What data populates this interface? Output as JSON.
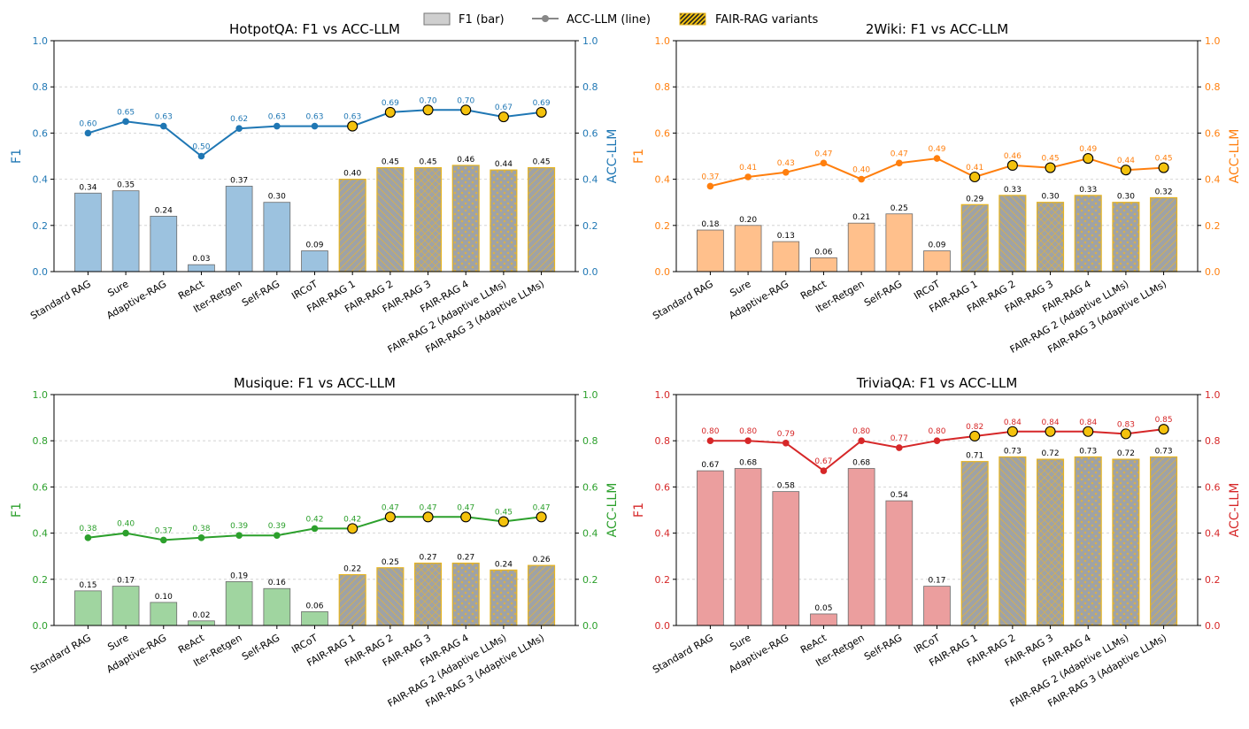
{
  "legend": {
    "items": [
      {
        "label": "F1 (bar)",
        "kind": "bar"
      },
      {
        "label": "ACC-LLM (line)",
        "kind": "line"
      },
      {
        "label": "FAIR-RAG variants",
        "kind": "hatch"
      }
    ]
  },
  "colors": {
    "fair_bar_fill": "#9ea2a7",
    "fair_bar_edge": "#e6b422",
    "fair_marker": "#f4c20d",
    "grid": "#cccccc"
  },
  "chart_data": [
    {
      "type": "bar+line",
      "title": "HotpotQA: F1 vs ACC-LLM",
      "ylabel_left": "F1",
      "ylabel_right": "ACC-LLM",
      "ylim": [
        0,
        1
      ],
      "yticks": [
        "0.0",
        "0.2",
        "0.4",
        "0.6",
        "0.8",
        "1.0"
      ],
      "color": "#1f77b4",
      "bar_color": "#9cc2df",
      "categories": [
        "Standard RAG",
        "Sure",
        "Adaptive-RAG",
        "ReAct",
        "Iter-Retgen",
        "Self-RAG",
        "IRCoT",
        "FAIR-RAG 1",
        "FAIR-RAG 2",
        "FAIR-RAG 3",
        "FAIR-RAG 4",
        "FAIR-RAG 2 (Adaptive LLMs)",
        "FAIR-RAG 3 (Adaptive LLMs)"
      ],
      "f1": [
        0.34,
        0.35,
        0.24,
        0.03,
        0.37,
        0.3,
        0.09,
        0.4,
        0.45,
        0.45,
        0.46,
        0.44,
        0.45
      ],
      "f1_labels": [
        "0.34",
        "0.35",
        "0.24",
        "0.03",
        "0.37",
        "0.30",
        "0.09",
        "0.40",
        "0.45",
        "0.45",
        "0.46",
        "0.44",
        "0.45"
      ],
      "acc_llm": [
        0.6,
        0.65,
        0.63,
        0.5,
        0.62,
        0.63,
        0.63,
        0.63,
        0.69,
        0.7,
        0.7,
        0.67,
        0.69
      ],
      "acc_labels": [
        "0.60",
        "0.65",
        "0.63",
        "0.50",
        "0.62",
        "0.63",
        "0.63",
        "0.63",
        "0.69",
        "0.70",
        "0.70",
        "0.67",
        "0.69"
      ],
      "fair_variant": [
        false,
        false,
        false,
        false,
        false,
        false,
        false,
        true,
        true,
        true,
        true,
        true,
        true
      ]
    },
    {
      "type": "bar+line",
      "title": "2Wiki: F1 vs ACC-LLM",
      "ylabel_left": "F1",
      "ylabel_right": "ACC-LLM",
      "ylim": [
        0,
        1
      ],
      "yticks": [
        "0.0",
        "0.2",
        "0.4",
        "0.6",
        "0.8",
        "1.0"
      ],
      "color": "#ff7f0e",
      "bar_color": "#ffc08c",
      "categories": [
        "Standard RAG",
        "Sure",
        "Adaptive-RAG",
        "ReAct",
        "Iter-Retgen",
        "Self-RAG",
        "IRCoT",
        "FAIR-RAG 1",
        "FAIR-RAG 2",
        "FAIR-RAG 3",
        "FAIR-RAG 4",
        "FAIR-RAG 2 (Adaptive LLMs)",
        "FAIR-RAG 3 (Adaptive LLMs)"
      ],
      "f1": [
        0.18,
        0.2,
        0.13,
        0.06,
        0.21,
        0.25,
        0.09,
        0.29,
        0.33,
        0.3,
        0.33,
        0.3,
        0.32
      ],
      "f1_labels": [
        "0.18",
        "0.20",
        "0.13",
        "0.06",
        "0.21",
        "0.25",
        "0.09",
        "0.29",
        "0.33",
        "0.30",
        "0.33",
        "0.30",
        "0.32"
      ],
      "acc_llm": [
        0.37,
        0.41,
        0.43,
        0.47,
        0.4,
        0.47,
        0.49,
        0.41,
        0.46,
        0.45,
        0.49,
        0.44,
        0.45
      ],
      "acc_labels": [
        "0.37",
        "0.41",
        "0.43",
        "0.47",
        "0.40",
        "0.47",
        "0.49",
        "0.41",
        "0.46",
        "0.45",
        "0.49",
        "0.44",
        "0.45"
      ],
      "fair_variant": [
        false,
        false,
        false,
        false,
        false,
        false,
        false,
        true,
        true,
        true,
        true,
        true,
        true
      ]
    },
    {
      "type": "bar+line",
      "title": "Musique: F1 vs ACC-LLM",
      "ylabel_left": "F1",
      "ylabel_right": "ACC-LLM",
      "ylim": [
        0,
        1
      ],
      "yticks": [
        "0.0",
        "0.2",
        "0.4",
        "0.6",
        "0.8",
        "1.0"
      ],
      "color": "#2ca02c",
      "bar_color": "#a0d5a0",
      "categories": [
        "Standard RAG",
        "Sure",
        "Adaptive-RAG",
        "ReAct",
        "Iter-Retgen",
        "Self-RAG",
        "IRCoT",
        "FAIR-RAG 1",
        "FAIR-RAG 2",
        "FAIR-RAG 3",
        "FAIR-RAG 4",
        "FAIR-RAG 2 (Adaptive LLMs)",
        "FAIR-RAG 3 (Adaptive LLMs)"
      ],
      "f1": [
        0.15,
        0.17,
        0.1,
        0.02,
        0.19,
        0.16,
        0.06,
        0.22,
        0.25,
        0.27,
        0.27,
        0.24,
        0.26
      ],
      "f1_labels": [
        "0.15",
        "0.17",
        "0.10",
        "0.02",
        "0.19",
        "0.16",
        "0.06",
        "0.22",
        "0.25",
        "0.27",
        "0.27",
        "0.24",
        "0.26"
      ],
      "acc_llm": [
        0.38,
        0.4,
        0.37,
        0.38,
        0.39,
        0.39,
        0.42,
        0.42,
        0.47,
        0.47,
        0.47,
        0.45,
        0.47
      ],
      "acc_labels": [
        "0.38",
        "0.40",
        "0.37",
        "0.38",
        "0.39",
        "0.39",
        "0.42",
        "0.42",
        "0.47",
        "0.47",
        "0.47",
        "0.45",
        "0.47"
      ],
      "fair_variant": [
        false,
        false,
        false,
        false,
        false,
        false,
        false,
        true,
        true,
        true,
        true,
        true,
        true
      ]
    },
    {
      "type": "bar+line",
      "title": "TriviaQA: F1 vs ACC-LLM",
      "ylabel_left": "F1",
      "ylabel_right": "ACC-LLM",
      "ylim": [
        0,
        1
      ],
      "yticks": [
        "0.0",
        "0.2",
        "0.4",
        "0.6",
        "0.8",
        "1.0"
      ],
      "color": "#d62728",
      "bar_color": "#eb9e9e",
      "categories": [
        "Standard RAG",
        "Sure",
        "Adaptive-RAG",
        "ReAct",
        "Iter-Retgen",
        "Self-RAG",
        "IRCoT",
        "FAIR-RAG 1",
        "FAIR-RAG 2",
        "FAIR-RAG 3",
        "FAIR-RAG 4",
        "FAIR-RAG 2 (Adaptive LLMs)",
        "FAIR-RAG 3 (Adaptive LLMs)"
      ],
      "f1": [
        0.67,
        0.68,
        0.58,
        0.05,
        0.68,
        0.54,
        0.17,
        0.71,
        0.73,
        0.72,
        0.73,
        0.72,
        0.73
      ],
      "f1_labels": [
        "0.67",
        "0.68",
        "0.58",
        "0.05",
        "0.68",
        "0.54",
        "0.17",
        "0.71",
        "0.73",
        "0.72",
        "0.73",
        "0.72",
        "0.73"
      ],
      "acc_llm": [
        0.8,
        0.8,
        0.79,
        0.67,
        0.8,
        0.77,
        0.8,
        0.82,
        0.84,
        0.84,
        0.84,
        0.83,
        0.85
      ],
      "acc_labels": [
        "0.80",
        "0.80",
        "0.79",
        "0.67",
        "0.80",
        "0.77",
        "0.80",
        "0.82",
        "0.84",
        "0.84",
        "0.84",
        "0.83",
        "0.85"
      ],
      "fair_variant": [
        false,
        false,
        false,
        false,
        false,
        false,
        false,
        true,
        true,
        true,
        true,
        true,
        true
      ]
    }
  ]
}
